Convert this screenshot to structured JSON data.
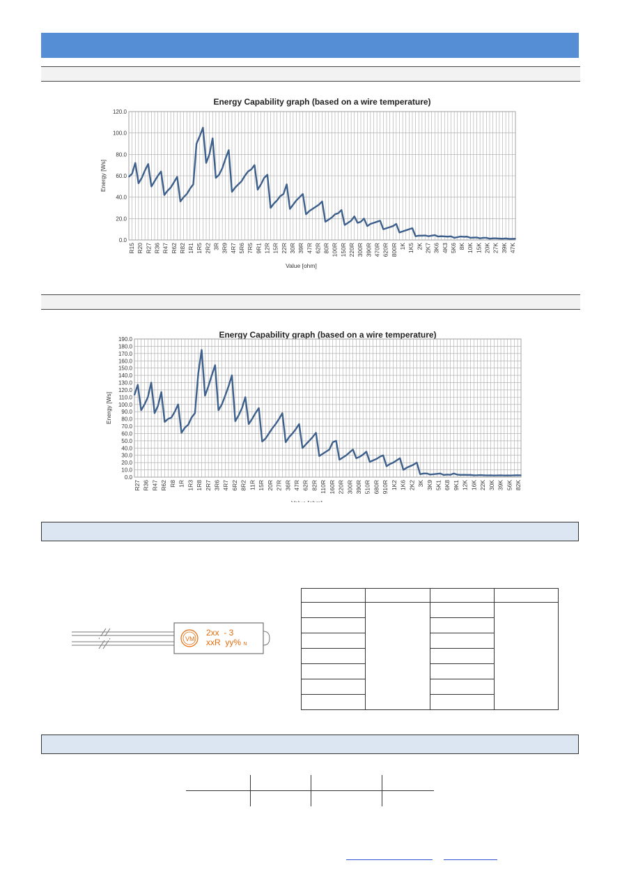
{
  "colors": {
    "header": "#558ed5",
    "section_box": "#dce6f2",
    "line": "#3d5f8c",
    "label": "#e46c0a"
  },
  "product_label": {
    "line1": "2xx  - 3",
    "line2": "xxR  yy%",
    "suffix": "N",
    "logo": "VM-logo-icon"
  },
  "chart_data": [
    {
      "type": "line",
      "title": "Energy Capability graph (based on a wire temperature)",
      "xlabel": "Value [ohm]",
      "ylabel": "Energy [Ws]",
      "ylim": [
        0,
        120
      ],
      "ytick_step": 20,
      "yticks": [
        "0.0",
        "20.0",
        "40.0",
        "60.0",
        "80.0",
        "100.0",
        "120.0"
      ],
      "grid": true,
      "xtick_labels": [
        "R15",
        "R20",
        "R27",
        "R36",
        "R47",
        "R62",
        "R82",
        "1R1",
        "1R5",
        "2R2",
        "3R",
        "3R9",
        "4R7",
        "5R6",
        "7R5",
        "9R1",
        "12R",
        "15R",
        "22R",
        "30R",
        "39R",
        "47R",
        "62R",
        "80R",
        "100R",
        "150R",
        "220R",
        "300R",
        "390R",
        "470R",
        "620R",
        "800R",
        "1K",
        "1K5",
        "2K",
        "2K7",
        "3K6",
        "4K3",
        "5K6",
        "8K",
        "10K",
        "15K",
        "20K",
        "27K",
        "39K",
        "47K"
      ],
      "series": [
        {
          "values": [
            59,
            62,
            72,
            53,
            58,
            65,
            71,
            50,
            55,
            60,
            64,
            42,
            46,
            49,
            54,
            59,
            36,
            40,
            43,
            48,
            52,
            90,
            97,
            105,
            72,
            80,
            95,
            58,
            61,
            67,
            76,
            84,
            45,
            49,
            52,
            55,
            60,
            64,
            66,
            70,
            47,
            52,
            58,
            61,
            30,
            34,
            37,
            41,
            43,
            52,
            29,
            33,
            37,
            40,
            43,
            24,
            27,
            29,
            31,
            33,
            36,
            17,
            19,
            21,
            24,
            25,
            28,
            14,
            16,
            18,
            22,
            16,
            17,
            20,
            13,
            15,
            16,
            17,
            18,
            10,
            11,
            12,
            13,
            15,
            7,
            8,
            9,
            10,
            11,
            3.5,
            4,
            4,
            4.2,
            3.5,
            4,
            4.5,
            3.2,
            3.5,
            3.3,
            3.1,
            3.4,
            2,
            2.6,
            3.2,
            3,
            3.1,
            2,
            2.2,
            2.3,
            1.5,
            2,
            2,
            1.2,
            1.5,
            1.5,
            1.3,
            1.2,
            1.4,
            1,
            1,
            1.2
          ]
        }
      ]
    },
    {
      "type": "line",
      "title": "Energy Capability graph (based on a wire temperature)",
      "xlabel": "Value [ohm]",
      "ylabel": "Energy [Ws]",
      "ylim": [
        0,
        190
      ],
      "ytick_step": 10,
      "yticks": [
        "0.0",
        "10.0",
        "20.0",
        "30.0",
        "40.0",
        "50.0",
        "60.0",
        "70.0",
        "80.0",
        "90.0",
        "100.0",
        "110.0",
        "120.0",
        "130.0",
        "140.0",
        "150.0",
        "160.0",
        "170.0",
        "180.0",
        "190.0"
      ],
      "grid": true,
      "xtick_labels": [
        "R27",
        "R36",
        "R47",
        "R62",
        "R8",
        "1R",
        "1R3",
        "1R8",
        "2R7",
        "3R6",
        "4R7",
        "6R2",
        "8R2",
        "11R",
        "15R",
        "20R",
        "27R",
        "36R",
        "47R",
        "62R",
        "82R",
        "110R",
        "160R",
        "220R",
        "300R",
        "390R",
        "510R",
        "680R",
        "910R",
        "1K2",
        "1K6",
        "2K2",
        "3K",
        "3K9",
        "5K1",
        "6K8",
        "9K1",
        "12K",
        "16K",
        "22K",
        "30K",
        "39K",
        "56K",
        "82K"
      ],
      "series": [
        {
          "values": [
            113,
            127,
            92,
            100,
            110,
            130,
            88,
            98,
            117,
            76,
            80,
            82,
            90,
            100,
            61,
            68,
            72,
            82,
            88,
            143,
            175,
            112,
            125,
            140,
            154,
            92,
            100,
            112,
            125,
            140,
            77,
            85,
            95,
            110,
            73,
            80,
            88,
            95,
            49,
            53,
            60,
            67,
            73,
            80,
            88,
            48,
            55,
            60,
            66,
            73,
            40,
            45,
            50,
            55,
            61,
            29,
            32,
            35,
            38,
            48,
            50,
            24,
            27,
            30,
            34,
            38,
            26,
            28,
            31,
            35,
            21,
            23,
            25,
            28,
            30,
            15,
            18,
            20,
            23,
            26,
            10,
            13,
            15,
            17,
            20,
            4,
            5,
            5,
            3.5,
            4,
            4.5,
            5,
            3,
            3.5,
            3.2,
            5,
            3.5,
            3,
            3.2,
            3,
            3,
            2.5,
            2.6,
            2.8,
            2.5,
            2.3,
            2.5,
            2.2,
            2.3,
            2.5,
            2.2,
            2.3,
            2.2,
            2.5,
            2.6,
            2.5
          ]
        }
      ]
    }
  ]
}
